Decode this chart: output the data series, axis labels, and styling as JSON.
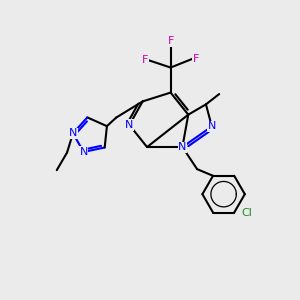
{
  "background_color": "#ebebeb",
  "bond_color": "#000000",
  "nitrogen_color": "#0000ff",
  "fluorine_color": "#cc00aa",
  "chlorine_color": "#228B22",
  "bond_width": 1.5,
  "fig_w": 3.0,
  "fig_h": 3.0,
  "dpi": 100,
  "xlim": [
    0,
    10
  ],
  "ylim": [
    0,
    10
  ]
}
